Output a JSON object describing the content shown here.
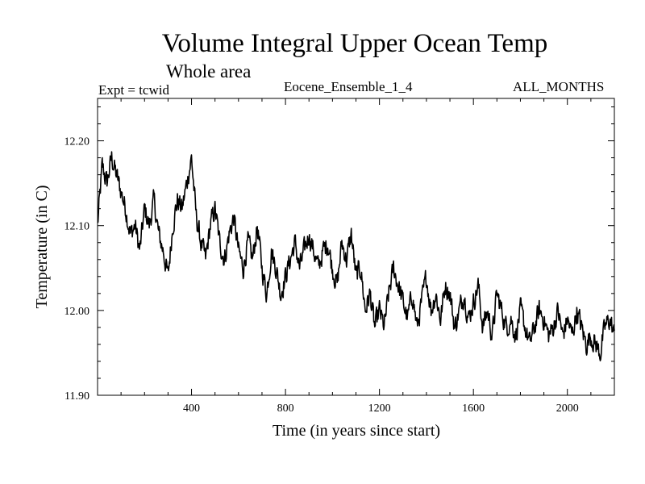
{
  "header": {
    "title": "Volume Integral Upper Ocean Temp",
    "subtitle": "Whole area",
    "expt": "Expt = tcwid",
    "ensemble": "Eocene_Ensemble_1_4",
    "months": "ALL_MONTHS"
  },
  "chart_data": {
    "type": "line",
    "title": "Volume Integral Upper Ocean Temp",
    "subtitle": "Whole area",
    "xlabel": "Time (in years since start)",
    "ylabel": "Temperature (in C)",
    "xlim": [
      0,
      2200
    ],
    "ylim": [
      11.9,
      12.25
    ],
    "xticks": [
      400,
      800,
      1200,
      1600,
      2000
    ],
    "xtick_labels": [
      "400",
      "800",
      "1200",
      "1600",
      "2000"
    ],
    "yticks": [
      11.9,
      12.0,
      12.1,
      12.2
    ],
    "ytick_labels": [
      "11.90",
      "12.00",
      "12.10",
      "12.20"
    ],
    "line_color": "#000000",
    "grid": false,
    "series": [
      {
        "x": [
          0,
          20,
          40,
          60,
          80,
          100,
          120,
          140,
          160,
          180,
          200,
          220,
          240,
          260,
          280,
          300,
          320,
          340,
          360,
          380,
          400,
          420,
          440,
          460,
          480,
          500,
          520,
          540,
          560,
          580,
          600,
          620,
          640,
          660,
          680,
          700,
          720,
          740,
          760,
          780,
          800,
          820,
          840,
          860,
          880,
          900,
          920,
          940,
          960,
          980,
          1000,
          1020,
          1040,
          1060,
          1080,
          1100,
          1120,
          1140,
          1160,
          1180,
          1200,
          1220,
          1240,
          1260,
          1280,
          1300,
          1320,
          1340,
          1360,
          1380,
          1400,
          1420,
          1440,
          1460,
          1480,
          1500,
          1520,
          1540,
          1560,
          1580,
          1600,
          1620,
          1640,
          1660,
          1680,
          1700,
          1720,
          1740,
          1760,
          1780,
          1800,
          1820,
          1840,
          1860,
          1880,
          1900,
          1920,
          1940,
          1960,
          1980,
          2000,
          2020,
          2040,
          2060,
          2080,
          2100,
          2120,
          2140,
          2160,
          2180,
          2200
        ],
        "values": [
          12.1,
          12.17,
          12.15,
          12.18,
          12.16,
          12.14,
          12.12,
          12.09,
          12.1,
          12.07,
          12.12,
          12.1,
          12.13,
          12.09,
          12.07,
          12.04,
          12.1,
          12.13,
          12.12,
          12.15,
          12.18,
          12.11,
          12.08,
          12.06,
          12.1,
          12.12,
          12.08,
          12.06,
          12.09,
          12.11,
          12.07,
          12.05,
          12.08,
          12.06,
          12.1,
          12.05,
          12.02,
          12.07,
          12.05,
          12.02,
          12.04,
          12.06,
          12.08,
          12.05,
          12.07,
          12.09,
          12.07,
          12.05,
          12.07,
          12.08,
          12.05,
          12.03,
          12.08,
          12.06,
          12.09,
          12.04,
          12.05,
          12.0,
          12.02,
          11.98,
          12.0,
          11.98,
          12.02,
          12.05,
          12.03,
          12.01,
          11.99,
          12.02,
          11.98,
          12.01,
          12.04,
          12.0,
          12.02,
          11.99,
          12.03,
          12.02,
          11.98,
          12.0,
          12.02,
          11.99,
          12.01,
          12.03,
          11.98,
          12.0,
          11.97,
          12.02,
          12.0,
          11.98,
          11.99,
          11.97,
          12.0,
          11.98,
          11.96,
          11.98,
          12.0,
          11.99,
          11.97,
          11.98,
          12.0,
          11.97,
          11.99,
          11.97,
          12.0,
          11.98,
          11.96,
          11.97,
          11.96,
          11.95,
          11.98,
          11.99,
          11.97
        ],
        "detail_noise_amplitude": 0.02
      }
    ]
  }
}
